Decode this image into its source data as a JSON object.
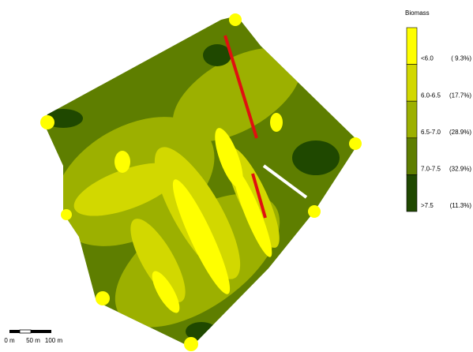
{
  "legend": {
    "title": "Biomass",
    "classes": [
      {
        "label": "<6.0",
        "percent": "( 9.3%)",
        "color": "#ffff00"
      },
      {
        "label": "6.0-6.5",
        "percent": "(17.7%)",
        "color": "#d2d800"
      },
      {
        "label": "6.5-7.0",
        "percent": "(28.9%)",
        "color": "#9cb000"
      },
      {
        "label": "7.0-7.5",
        "percent": "(32.9%)",
        "color": "#5e7e00"
      },
      {
        "label": ">7.5",
        "percent": "(11.3%)",
        "color": "#1f4800"
      }
    ]
  },
  "scale_bar": {
    "labels": [
      "0 m",
      "50 m",
      "100 m"
    ]
  }
}
